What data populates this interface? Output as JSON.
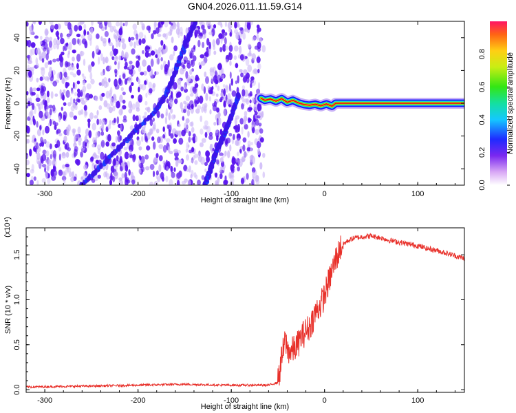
{
  "title": "GN04.2026.011.11.59.G14",
  "colors": {
    "speckle": "#5a14ee",
    "speckle_light": "#c9b2f7",
    "snr_line": "#e8302a",
    "ridge_outer": "#1a1aff",
    "ridge_mid": "#19e3e3",
    "ridge_inner": "#e31414"
  },
  "chart_data": [
    {
      "type": "heatmap",
      "name": "spectrogram",
      "xlabel": "Height of straight line (km)",
      "ylabel": "Frequency (Hz)",
      "xlim": [
        -320,
        150
      ],
      "ylim": [
        -50,
        50
      ],
      "xticks": [
        -300,
        -200,
        -100,
        0,
        100
      ],
      "xtick_labels": [
        "-300",
        "-200",
        "-100",
        "0",
        "100"
      ],
      "yticks": [
        -40,
        -20,
        0,
        20,
        40
      ],
      "ytick_labels": [
        "-40",
        "-20",
        "0",
        "20",
        "40"
      ],
      "noise_region_x": [
        -320,
        -68
      ],
      "ridge": {
        "x": [
          -68,
          -64,
          -58,
          -52,
          -46,
          -40,
          -34,
          -28,
          -22,
          -16,
          -10,
          -4,
          2,
          8,
          12,
          150
        ],
        "y": [
          3,
          1.8,
          2.6,
          1.2,
          2.8,
          0.6,
          1.8,
          0.2,
          -0.8,
          -1.2,
          -0.6,
          -1.6,
          -0.4,
          -1.8,
          0,
          0
        ]
      },
      "aliases": [
        {
          "x": [
            -260,
            -225,
            -200,
            -182,
            -170,
            -158,
            -148,
            -138
          ],
          "y": [
            -50,
            -30,
            -15,
            -5,
            5,
            22,
            38,
            50
          ]
        },
        {
          "x": [
            -128,
            -122,
            -115,
            -108,
            -100,
            -92
          ],
          "y": [
            -50,
            -40,
            -28,
            -20,
            -8,
            5
          ]
        }
      ],
      "colorbar": {
        "label": "Normalized spectral amplitude",
        "range": [
          0,
          1
        ],
        "ticks": [
          0.0,
          0.2,
          0.4,
          0.6,
          0.8
        ],
        "tick_labels": [
          "0.0",
          "0.2",
          "0.4",
          "0.6",
          "0.8"
        ]
      }
    },
    {
      "type": "line",
      "name": "snr",
      "xlabel": "Height of straight line (km)",
      "ylabel": "SNR (10 * v/v)",
      "y_multiplier": "(x10⁴)",
      "xlim": [
        -320,
        150
      ],
      "ylim": [
        -0.03,
        1.8
      ],
      "xticks": [
        -300,
        -200,
        -100,
        0,
        100
      ],
      "xtick_labels": [
        "-300",
        "-200",
        "-100",
        "0",
        "100"
      ],
      "yticks": [
        0.0,
        0.5,
        1.0,
        1.5
      ],
      "ytick_labels": [
        "0.0",
        "0.5",
        "1.0",
        "1.5"
      ],
      "envelope": {
        "x": [
          -320,
          -250,
          -200,
          -150,
          -110,
          -80,
          -60,
          -50,
          -46,
          -42,
          -40,
          -36,
          -30,
          -24,
          -16,
          -10,
          -4,
          0,
          6,
          12,
          18,
          24,
          30,
          40,
          50,
          60,
          70,
          80,
          90,
          100,
          110,
          120,
          130,
          140,
          150
        ],
        "y": [
          0.03,
          0.04,
          0.05,
          0.06,
          0.05,
          0.05,
          0.05,
          0.08,
          0.35,
          0.55,
          0.45,
          0.42,
          0.48,
          0.6,
          0.7,
          0.85,
          0.95,
          1.05,
          1.25,
          1.45,
          1.6,
          1.65,
          1.68,
          1.7,
          1.71,
          1.69,
          1.66,
          1.64,
          1.62,
          1.6,
          1.57,
          1.55,
          1.52,
          1.49,
          1.46
        ]
      }
    }
  ]
}
